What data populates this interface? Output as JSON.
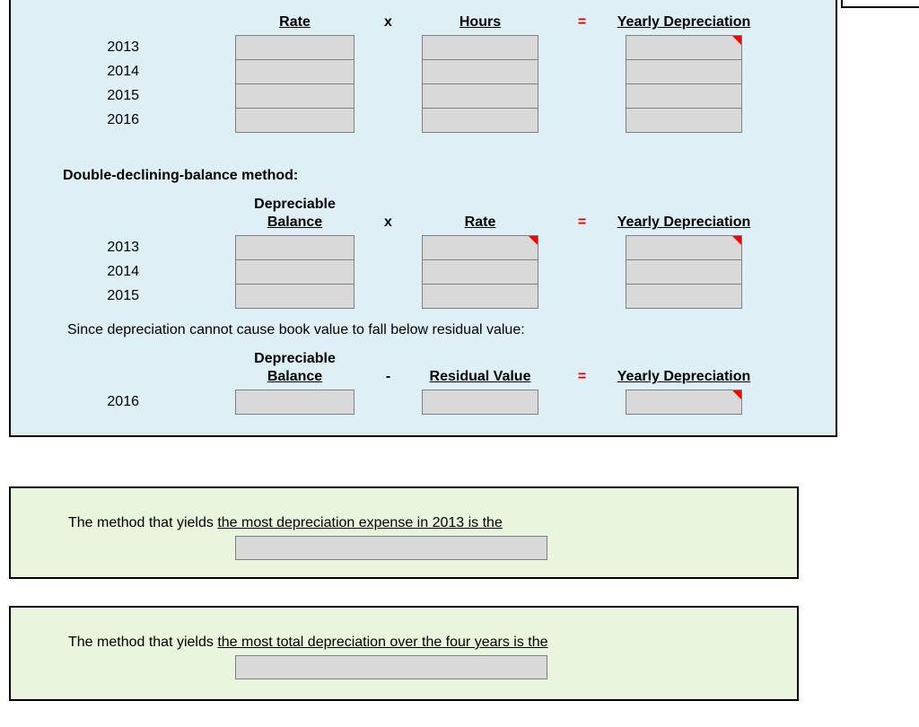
{
  "colors": {
    "panel_blue": "#def0f6",
    "panel_green": "#e9f6dd",
    "input_gray": "#d9d9d9",
    "input_border": "#808080",
    "flag_red": "#ff0000",
    "eq_red": "#dd0000"
  },
  "worksheet": {
    "units_table": {
      "header": {
        "col1": "Rate",
        "op1": "x",
        "col2": "Hours",
        "op2": "=",
        "col3": "Yearly Depreciation"
      },
      "years": [
        "2013",
        "2014",
        "2015",
        "2016"
      ]
    },
    "ddb_heading": "Double-declining-balance method:",
    "ddb_table": {
      "header": {
        "col1_line1": "Depreciable",
        "col1_line2": "Balance",
        "op1": "x",
        "col2": "Rate",
        "op2": "=",
        "col3": "Yearly Depreciation"
      },
      "years": [
        "2013",
        "2014",
        "2015"
      ]
    },
    "note": "Since depreciation cannot cause book value to fall below residual value:",
    "final_table": {
      "header": {
        "col1_line1": "Depreciable",
        "col1_line2": "Balance",
        "op1": "-",
        "col2": "Residual Value",
        "op2": "=",
        "col3": "Yearly Depreciation"
      },
      "years": [
        "2016"
      ]
    }
  },
  "questions": [
    {
      "lead": "The method that yields ",
      "underlined": "the most depreciation expense in 2013 is the"
    },
    {
      "lead": "The method that yields ",
      "underlined": "the most total depreciation over the four years is the"
    }
  ]
}
